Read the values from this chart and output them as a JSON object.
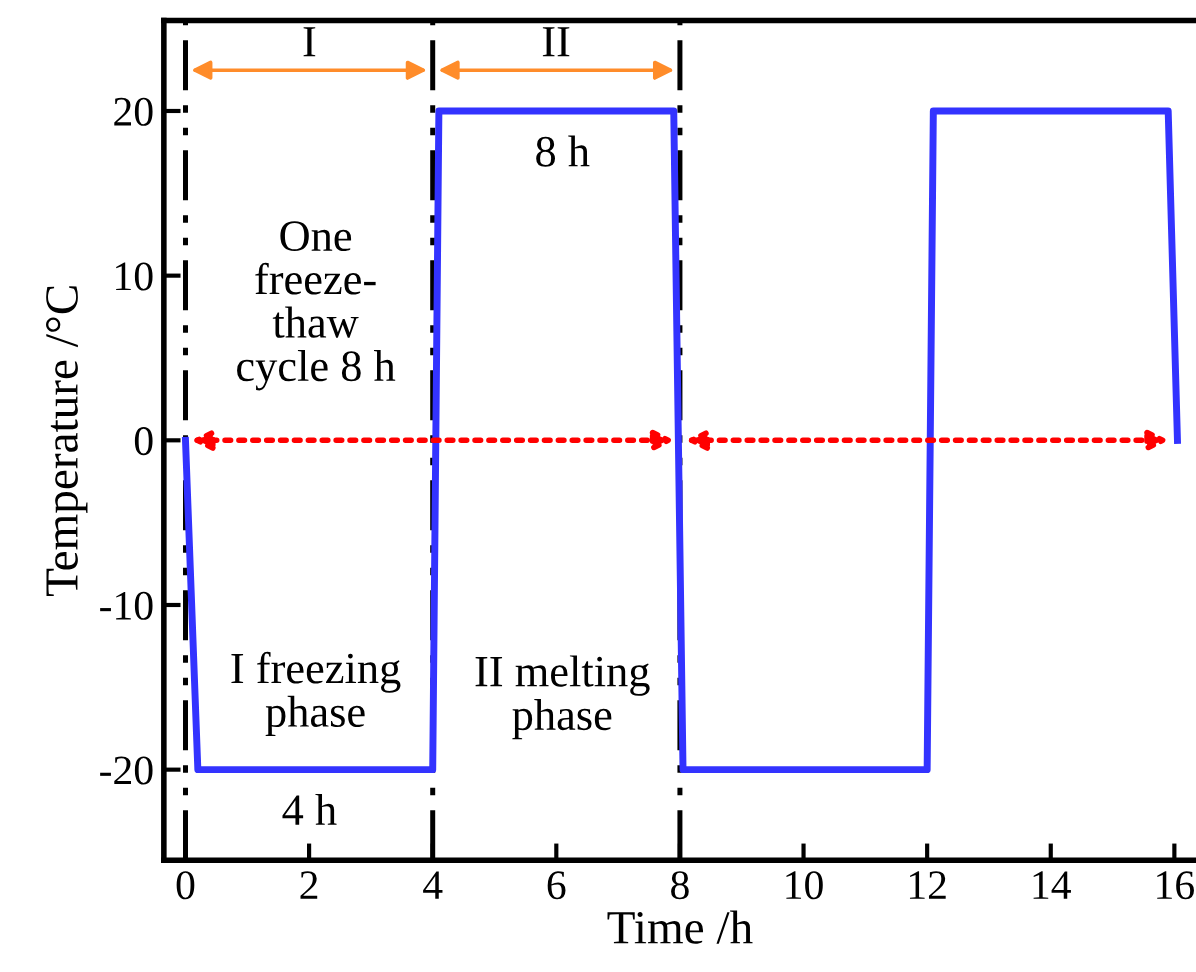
{
  "chart_data": {
    "type": "line",
    "xlabel": "Time /h",
    "ylabel": "Temperature /°C",
    "xlim": [
      -0.35,
      16.35
    ],
    "xticks": [
      0,
      2,
      4,
      6,
      8,
      10,
      12,
      14,
      16
    ],
    "ylim": [
      -25.5,
      25.5
    ],
    "yticks": [
      -20,
      -10,
      0,
      10,
      20
    ],
    "grid": false,
    "marker": "none",
    "line_style": "solid",
    "series": [
      {
        "color": "#3333ff",
        "x": [
          0,
          0.2,
          4,
          4.1,
          7.9,
          8.05,
          12,
          12.1,
          15.9,
          16.05
        ],
        "values": [
          0,
          -20,
          -20,
          20,
          20,
          -20,
          -20,
          20,
          20,
          0
        ]
      }
    ],
    "ref_lines": [
      {
        "axis": "x",
        "value": 0,
        "color": "#000000",
        "line_style": "dashdot"
      },
      {
        "axis": "x",
        "value": 4,
        "color": "#000000",
        "line_style": "dashdot"
      },
      {
        "axis": "x",
        "value": 8,
        "color": "#000000",
        "line_style": "dashdot"
      }
    ],
    "annotations": [
      "I",
      "II",
      "8 h",
      "One\nfreeze-\nthaw\ncycle 8 h",
      "I freezing\nphase",
      "II melting\nphase",
      "4 h"
    ]
  }
}
